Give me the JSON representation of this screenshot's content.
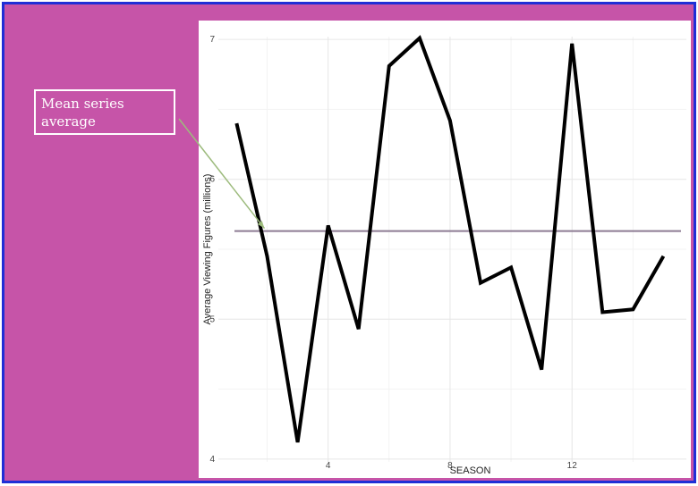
{
  "annotation": {
    "callout_line1": "Mean series",
    "callout_line2": "average"
  },
  "colors": {
    "background": "#c654a8",
    "border": "#1f2fd6",
    "panel": "#ffffff",
    "line": "#000000",
    "mean_line": "#8d7b93",
    "arrow": "#9dbb7d"
  },
  "chart_data": {
    "type": "line",
    "title": "",
    "xlabel": "SEASON",
    "ylabel": "Average Viewing Figures (millions)",
    "x": [
      1,
      2,
      3,
      4,
      5,
      6,
      7,
      8,
      9,
      10,
      11,
      12,
      13,
      14,
      15
    ],
    "series": [
      {
        "values": [
          6.4,
          5.45,
          4.12,
          5.67,
          4.93,
          6.81,
          7.01,
          6.42,
          5.26,
          5.37,
          4.64,
          6.97,
          5.05,
          5.07,
          5.45
        ]
      }
    ],
    "mean_line": 5.63,
    "xticks": [
      4,
      8,
      12
    ],
    "yticks": [
      4,
      5,
      6,
      7
    ],
    "xlim": [
      0.4,
      15.75
    ],
    "ylim": [
      3.98,
      7.02
    ],
    "grid": true,
    "legend": "none"
  }
}
